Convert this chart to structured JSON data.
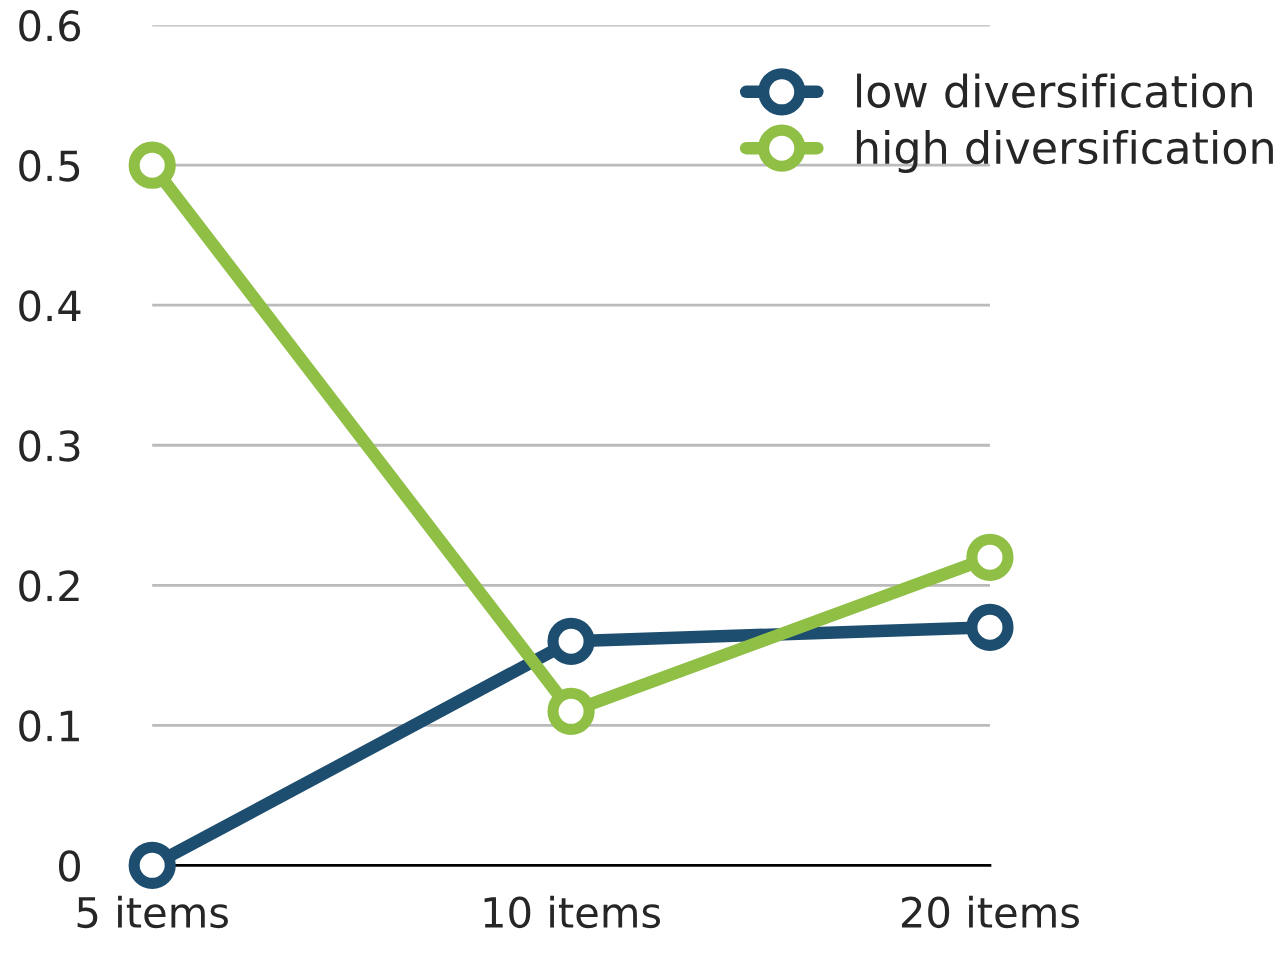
{
  "chart_data": {
    "type": "line",
    "categories": [
      "5 items",
      "10 items",
      "20 items"
    ],
    "series": [
      {
        "name": "low diversification",
        "color": "#1d4e6f",
        "values": [
          0,
          0.16,
          0.17
        ]
      },
      {
        "name": "high diversification",
        "color": "#8fbf45",
        "values": [
          0.5,
          0.11,
          0.22
        ]
      }
    ],
    "ylim": [
      0,
      0.6
    ],
    "yticks": [
      0,
      0.1,
      0.2,
      0.3,
      0.4,
      0.5,
      0.6
    ],
    "grid": "y",
    "legend": "top right",
    "marker": "circle",
    "line_style": "solid"
  }
}
